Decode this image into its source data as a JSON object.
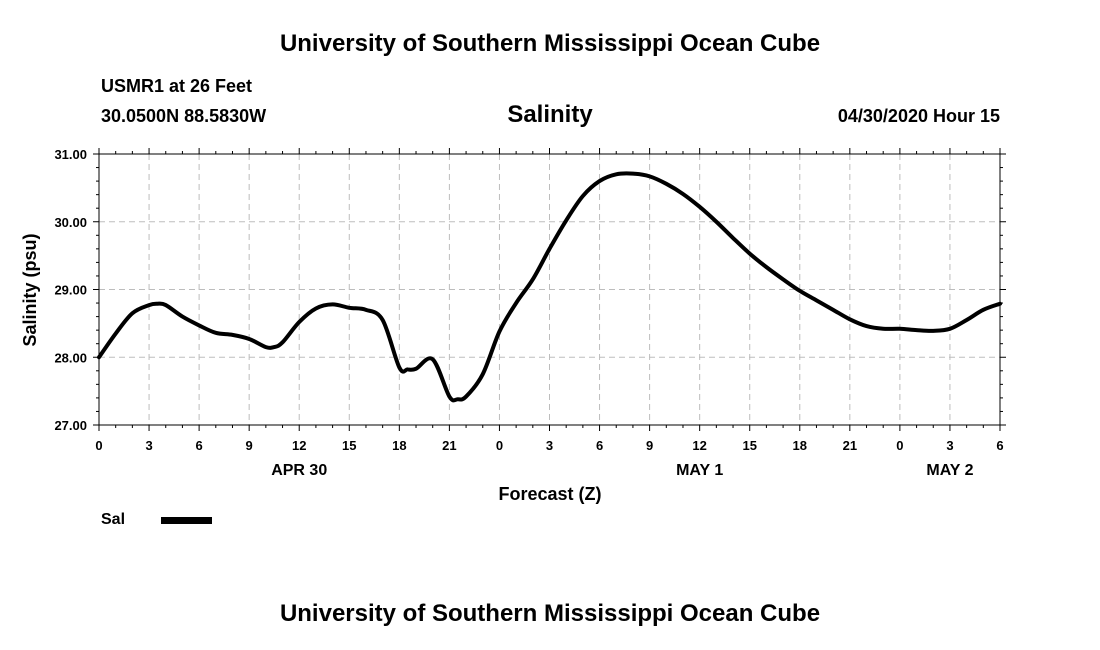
{
  "header": {
    "title": "University of Southern Mississippi Ocean Cube",
    "station": "USMR1 at 26 Feet",
    "coords": "30.0500N 88.5830W",
    "variable": "Salinity",
    "issued": "04/30/2020 Hour 15"
  },
  "footer": {
    "title": "University of Southern Mississippi Ocean Cube"
  },
  "chart_data": {
    "type": "line",
    "ylabel": "Salinity (psu)",
    "xlabel": "Forecast (Z)",
    "ylim": [
      27.0,
      31.0
    ],
    "y_ticks": [
      "27.00",
      "28.00",
      "29.00",
      "30.00",
      "31.00"
    ],
    "xlim_hours": [
      0,
      54
    ],
    "x_tick_labels": [
      "0",
      "3",
      "6",
      "9",
      "12",
      "15",
      "18",
      "21",
      "0",
      "3",
      "6",
      "9",
      "12",
      "15",
      "18",
      "21",
      "0",
      "3",
      "6"
    ],
    "day_labels": [
      {
        "label": "APR 30",
        "hour": 12
      },
      {
        "label": "MAY 1",
        "hour": 36
      },
      {
        "label": "MAY 2",
        "hour": 51
      }
    ],
    "grid": true,
    "legend": {
      "position": "bottom-left",
      "entries": [
        "Sal"
      ]
    },
    "series": [
      {
        "name": "Sal",
        "color": "#000000",
        "x": [
          0,
          1,
          2,
          3,
          3.5,
          4,
          5,
          6,
          7,
          8,
          9,
          10,
          10.5,
          11,
          12,
          13,
          14,
          15,
          16,
          17,
          18,
          18.5,
          19,
          20,
          21,
          21.5,
          22,
          23,
          24,
          25,
          26,
          27,
          28,
          29,
          30,
          31,
          32,
          33,
          34,
          35,
          36,
          37,
          38,
          39,
          40,
          41,
          42,
          43,
          44,
          45,
          46,
          47,
          48,
          49,
          50,
          51,
          52,
          53,
          54
        ],
        "values": [
          28.0,
          28.35,
          28.65,
          28.77,
          28.79,
          28.77,
          28.6,
          28.47,
          28.36,
          28.33,
          28.27,
          28.15,
          28.15,
          28.22,
          28.52,
          28.72,
          28.78,
          28.73,
          28.7,
          28.55,
          27.85,
          27.82,
          27.83,
          27.97,
          27.42,
          27.38,
          27.42,
          27.75,
          28.38,
          28.8,
          29.15,
          29.6,
          30.02,
          30.38,
          30.6,
          30.7,
          30.71,
          30.67,
          30.56,
          30.41,
          30.22,
          30.0,
          29.76,
          29.53,
          29.33,
          29.15,
          28.98,
          28.84,
          28.7,
          28.56,
          28.46,
          28.42,
          28.42,
          28.4,
          28.39,
          28.42,
          28.55,
          28.7,
          28.79
        ]
      }
    ]
  }
}
